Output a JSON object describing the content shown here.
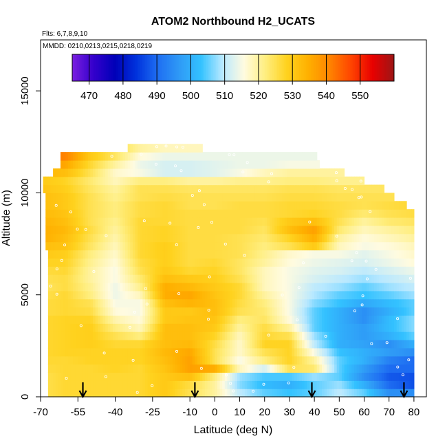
{
  "chart_data": {
    "type": "heatmap",
    "title": "ATOM2 Northbound H2_UCATS",
    "subtitle_flights": "Flts: 6,7,8,9,10",
    "subtitle_dates": "MMDD: 0210,0213,0215,0218,0219",
    "xlabel": "Latitude (deg N)",
    "ylabel": "Altitude (m)",
    "xlim": [
      -70,
      85
    ],
    "ylim": [
      0,
      17500
    ],
    "x_ticks": [
      -70,
      -55,
      -40,
      -25,
      -10,
      0,
      10,
      20,
      30,
      40,
      50,
      60,
      70,
      80
    ],
    "x_tick_labels": [
      "-70",
      "-55",
      "-40",
      "-25",
      "-10",
      "0",
      "10",
      "20",
      "30",
      "40",
      "50",
      "60",
      "70",
      "80"
    ],
    "y_ticks": [
      0,
      5000,
      10000,
      15000
    ],
    "y_tick_labels": [
      "0",
      "5000",
      "10000",
      "15000"
    ],
    "colorbar": {
      "min": 465,
      "max": 560,
      "ticks": [
        470,
        480,
        490,
        500,
        510,
        520,
        530,
        540,
        550
      ],
      "tick_labels": [
        "470",
        "480",
        "490",
        "500",
        "510",
        "520",
        "530",
        "540",
        "550"
      ],
      "colors": [
        "#7b1fe0",
        "#3300cc",
        "#0000b8",
        "#0033dd",
        "#1f6ff2",
        "#2f9af6",
        "#33c2ff",
        "#b8e8ff",
        "#fffbe0",
        "#ffee80",
        "#ffd21e",
        "#ffb000",
        "#ff8400",
        "#ff4400",
        "#e80000",
        "#9c1616"
      ]
    },
    "flight_arrows_lat": [
      -53,
      -8,
      39,
      76
    ],
    "altitude_levels_m": [
      200,
      600,
      1000,
      1400,
      1800,
      2200,
      2600,
      3000,
      3400,
      3800,
      4200,
      4600,
      5000,
      5400,
      5800,
      6200,
      6600,
      7000,
      7400,
      7800,
      8200,
      8600,
      9000,
      9400,
      9800,
      10200,
      10600,
      11000,
      11400,
      11800,
      12200
    ],
    "level_lat_ranges": [
      [
        -67,
        80
      ],
      [
        -67,
        80
      ],
      [
        -67,
        80
      ],
      [
        -67,
        80
      ],
      [
        -67,
        80
      ],
      [
        -67,
        80
      ],
      [
        -67,
        80
      ],
      [
        -67,
        80
      ],
      [
        -67,
        80
      ],
      [
        -67,
        80
      ],
      [
        -67,
        80
      ],
      [
        -67,
        80
      ],
      [
        -67,
        80
      ],
      [
        -67,
        80
      ],
      [
        -67,
        80
      ],
      [
        -67,
        80
      ],
      [
        -67,
        80
      ],
      [
        -67,
        80
      ],
      [
        -68,
        80
      ],
      [
        -68,
        80
      ],
      [
        -68,
        80
      ],
      [
        -68,
        80
      ],
      [
        -68,
        80
      ],
      [
        -68,
        77
      ],
      [
        -68,
        72
      ],
      [
        -69,
        68
      ],
      [
        -69,
        60
      ],
      [
        -65,
        52
      ],
      [
        -62,
        42
      ],
      [
        -62,
        41
      ],
      [
        -35,
        -5
      ]
    ],
    "h2_grid_ppb": [
      [
        525,
        527,
        527,
        527,
        527,
        530,
        525,
        520,
        510,
        505,
        503,
        505,
        510,
        505,
        495,
        495
      ],
      [
        525,
        527,
        527,
        527,
        527,
        530,
        526,
        520,
        507,
        502,
        500,
        505,
        508,
        500,
        490,
        487
      ],
      [
        525,
        527,
        527,
        527,
        527,
        530,
        532,
        522,
        508,
        504,
        504,
        508,
        505,
        495,
        488,
        487
      ],
      [
        526,
        527,
        527,
        528,
        527,
        531,
        537,
        535,
        518,
        512,
        525,
        523,
        505,
        497,
        490,
        490
      ],
      [
        527,
        527,
        528,
        528,
        528,
        532,
        537,
        525,
        515,
        522,
        528,
        520,
        505,
        500,
        493,
        490
      ],
      [
        527,
        528,
        528,
        528,
        528,
        533,
        536,
        525,
        517,
        525,
        528,
        515,
        503,
        500,
        497,
        495
      ],
      [
        527,
        528,
        529,
        527,
        527,
        532,
        533,
        526,
        517,
        528,
        528,
        510,
        500,
        498,
        495,
        500
      ],
      [
        527,
        528,
        529,
        525,
        522,
        532,
        532,
        528,
        518,
        527,
        525,
        508,
        500,
        497,
        500,
        505
      ],
      [
        527,
        528,
        529,
        522,
        518,
        532,
        532,
        530,
        520,
        526,
        520,
        505,
        500,
        497,
        502,
        507
      ],
      [
        527,
        528,
        528,
        519,
        516,
        530,
        531,
        531,
        522,
        524,
        516,
        505,
        500,
        495,
        502,
        507
      ],
      [
        526,
        527,
        526,
        516,
        515,
        530,
        530,
        532,
        525,
        523,
        515,
        505,
        500,
        495,
        500,
        505
      ],
      [
        526,
        527,
        525,
        515,
        515,
        532,
        534,
        532,
        526,
        522,
        515,
        507,
        503,
        499,
        502,
        505
      ],
      [
        525,
        527,
        522,
        514,
        518,
        535,
        536,
        531,
        527,
        520,
        515,
        509,
        505,
        503,
        505,
        508
      ],
      [
        524,
        526,
        521,
        514,
        521,
        535,
        533,
        530,
        527,
        518,
        515,
        510,
        508,
        505,
        508,
        510
      ],
      [
        525,
        526,
        520,
        515,
        523,
        532,
        530,
        529,
        525,
        518,
        515,
        512,
        510,
        508,
        510,
        512
      ],
      [
        526,
        527,
        520,
        515,
        525,
        530,
        527,
        528,
        524,
        518,
        515,
        513,
        512,
        510,
        512,
        514
      ],
      [
        528,
        528,
        521,
        516,
        526,
        529,
        526,
        527,
        524,
        520,
        516,
        514,
        513,
        512,
        514,
        516
      ],
      [
        530,
        529,
        522,
        517,
        527,
        529,
        526,
        526,
        525,
        521,
        517,
        515,
        515,
        513,
        515,
        517
      ],
      [
        532,
        531,
        524,
        518,
        527,
        529,
        526,
        526,
        525,
        522,
        525,
        530,
        518,
        515,
        516,
        518
      ],
      [
        535,
        532,
        525,
        519,
        527,
        528,
        526,
        526,
        525,
        523,
        528,
        535,
        520,
        516,
        518,
        520
      ],
      [
        535,
        533,
        526,
        520,
        527,
        528,
        526,
        526,
        526,
        524,
        532,
        537,
        523,
        518,
        520,
        522
      ],
      [
        534,
        532,
        525,
        521,
        527,
        527,
        526,
        526,
        526,
        525,
        530,
        532,
        525,
        520,
        523,
        524
      ],
      [
        533,
        531,
        525,
        522,
        526,
        527,
        526,
        526,
        526,
        526,
        527,
        528,
        526,
        523,
        525,
        526
      ],
      [
        532,
        530,
        525,
        522,
        526,
        527,
        525,
        525,
        526,
        526,
        527,
        527,
        526,
        525,
        526,
        527
      ],
      [
        532,
        530,
        525,
        521,
        525,
        526,
        525,
        525,
        525,
        525,
        526,
        526,
        525,
        525,
        525,
        525
      ],
      [
        531,
        529,
        524,
        520,
        525,
        525,
        524,
        524,
        524,
        524,
        525,
        525,
        524,
        524,
        524,
        524
      ],
      [
        530,
        528,
        523,
        518,
        522,
        522,
        520,
        520,
        521,
        521,
        522,
        522,
        521,
        521,
        521,
        521
      ],
      [
        533,
        532,
        525,
        517,
        515,
        512,
        512,
        513,
        515,
        518,
        520,
        520,
        520,
        520,
        520,
        520
      ],
      [
        538,
        536,
        527,
        520,
        514,
        512,
        512,
        513,
        514,
        514,
        515,
        515,
        515,
        515,
        515,
        515
      ],
      [
        543,
        541,
        530,
        524,
        516,
        514,
        514,
        514,
        514,
        514,
        514,
        514,
        514,
        514,
        514,
        514
      ],
      [
        528,
        528,
        528,
        526,
        520,
        518,
        518,
        518,
        518,
        518,
        518,
        518,
        518,
        518,
        518,
        518
      ]
    ],
    "h2_grid_lat_nodes": [
      -70,
      -60,
      -50,
      -40,
      -30,
      -20,
      -10,
      0,
      10,
      20,
      30,
      40,
      50,
      60,
      70,
      80
    ]
  }
}
